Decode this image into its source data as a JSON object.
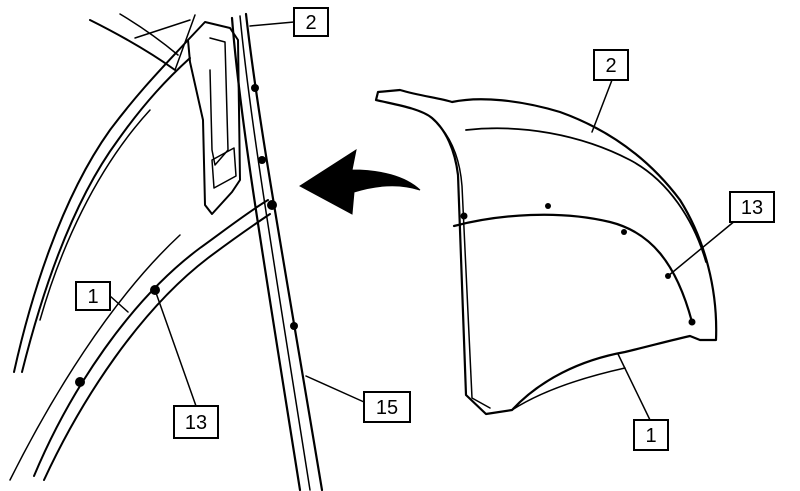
{
  "callouts": {
    "left_top": "2",
    "left_panel": "1",
    "left_fastener": "13",
    "left_trim": "15",
    "right_top": "2",
    "right_fastener": "13",
    "right_panel": "1"
  }
}
